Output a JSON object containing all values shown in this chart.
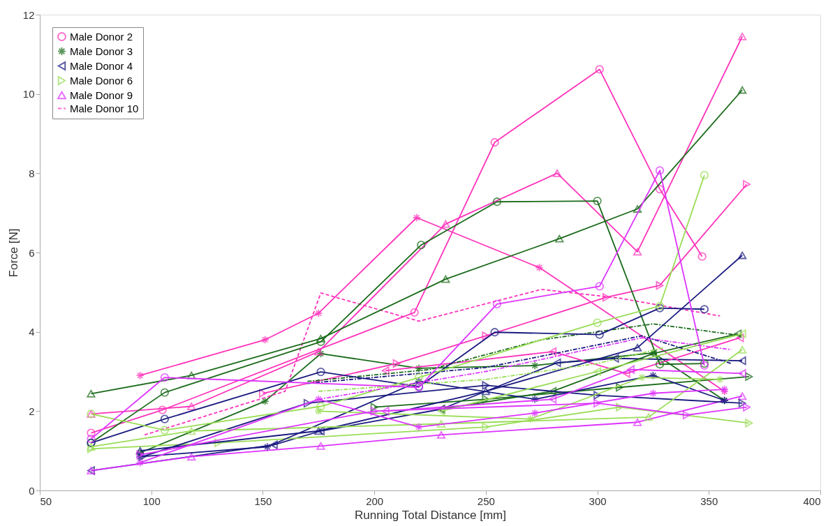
{
  "chart_data": {
    "type": "line",
    "xlabel": "Running Total Distance [mm]",
    "ylabel": "Force [N]",
    "xlim": [
      50,
      400
    ],
    "ylim": [
      0,
      12
    ],
    "xticks": [
      50,
      100,
      150,
      200,
      250,
      300,
      350,
      400
    ],
    "yticks": [
      0,
      2,
      4,
      6,
      8,
      10,
      12
    ],
    "grid": false,
    "legend": "top left",
    "line_style": "solid",
    "series": [
      {
        "name": "Male Donor 2",
        "color": "#ff33bb",
        "marker": "circle",
        "x": [
          73,
          105,
          218,
          254,
          301,
          328,
          347
        ],
        "values": [
          1.45,
          2.03,
          4.49,
          8.78,
          10.62,
          7.6,
          5.9
        ]
      },
      {
        "name": "Male Donor 3",
        "color": "#1a6b1a",
        "marker": "cross",
        "x": [
          95,
          151,
          176,
          220,
          272,
          325,
          357
        ],
        "values": [
          0.95,
          2.25,
          3.45,
          3.08,
          3.15,
          3.47,
          2.27
        ]
      },
      {
        "name": "Male Donor 4",
        "color": "#1a1a80",
        "marker": "triangle-left",
        "x": [
          73,
          155,
          176,
          230,
          282,
          308,
          365
        ],
        "values": [
          0.5,
          1.15,
          1.5,
          2.05,
          3.22,
          3.33,
          3.27
        ]
      },
      {
        "name": "Male Donor 6",
        "color": "#99dd55",
        "marker": "triangle-right",
        "x": [
          73,
          130,
          250,
          310,
          368
        ],
        "values": [
          1.05,
          1.2,
          1.6,
          2.1,
          1.7
        ]
      },
      {
        "name": "Male Donor 9",
        "color": "#dd33ff",
        "marker": "triangle",
        "x": [
          73,
          118,
          176,
          230,
          318,
          365
        ],
        "values": [
          0.5,
          0.85,
          1.12,
          1.4,
          1.72,
          2.38
        ]
      },
      {
        "name": "Male Donor 10",
        "color": "#ff33bb",
        "marker": "none",
        "line_style": "dashed",
        "x": [
          97,
          160,
          176,
          220,
          275,
          310,
          355
        ],
        "values": [
          1.4,
          2.5,
          4.98,
          4.27,
          5.07,
          4.85,
          4.4
        ]
      },
      {
        "color": "#ff33bb",
        "marker": "cross",
        "x": [
          95,
          151,
          175,
          219,
          274,
          357
        ],
        "values": [
          2.9,
          3.8,
          4.47,
          6.88,
          5.62,
          2.5
        ]
      },
      {
        "color": "#ff33bb",
        "marker": "triangle",
        "x": [
          73,
          118,
          175,
          232,
          282,
          318,
          365
        ],
        "values": [
          1.93,
          2.12,
          3.5,
          6.72,
          8.0,
          6.02,
          11.45
        ]
      },
      {
        "color": "#ff33bb",
        "marker": "triangle-right",
        "x": [
          150,
          210,
          250,
          304,
          328,
          367
        ],
        "values": [
          2.45,
          3.2,
          3.9,
          4.87,
          5.17,
          7.72
        ]
      },
      {
        "color": "#ff33bb",
        "marker": "triangle-left",
        "x": [
          205,
          280,
          313,
          364
        ],
        "values": [
          3.02,
          3.5,
          2.95,
          3.85
        ]
      },
      {
        "color": "#1a6b1a",
        "marker": "circle",
        "x": [
          73,
          106,
          176,
          221,
          255,
          300,
          328,
          348
        ],
        "values": [
          1.2,
          2.47,
          3.75,
          6.19,
          7.28,
          7.3,
          3.18,
          3.2
        ]
      },
      {
        "color": "#1a6b1a",
        "marker": "triangle",
        "x": [
          73,
          118,
          176,
          232,
          283,
          318,
          365
        ],
        "values": [
          2.44,
          2.9,
          3.83,
          5.33,
          6.35,
          7.1,
          10.1
        ]
      },
      {
        "color": "#1a6b1a",
        "marker": "triangle-left",
        "x": [
          230,
          280,
          325,
          363
        ],
        "values": [
          2.05,
          2.5,
          3.45,
          3.95
        ]
      },
      {
        "color": "#1a6b1a",
        "marker": "triangle-right",
        "x": [
          200,
          250,
          310,
          368
        ],
        "values": [
          2.1,
          2.3,
          2.6,
          2.87
        ]
      },
      {
        "color": "#1a6b1a",
        "marker": "none",
        "line_style": "dashdot",
        "x": [
          170,
          225,
          275,
          325,
          365
        ],
        "values": [
          2.75,
          3.05,
          3.8,
          4.2,
          3.9
        ]
      },
      {
        "color": "#1a1a80",
        "marker": "circle",
        "x": [
          73,
          106,
          176,
          220,
          254,
          301,
          328,
          348
        ],
        "values": [
          1.2,
          1.8,
          2.99,
          2.62,
          3.99,
          3.93,
          4.6,
          4.57
        ]
      },
      {
        "color": "#1a1a80",
        "marker": "triangle",
        "x": [
          95,
          175,
          250,
          318,
          365
        ],
        "values": [
          1.0,
          1.5,
          2.5,
          3.6,
          5.93
        ]
      },
      {
        "color": "#1a1a80",
        "marker": "cross",
        "x": [
          95,
          152,
          220,
          272,
          325,
          357
        ],
        "values": [
          0.85,
          1.1,
          2.75,
          2.3,
          2.9,
          2.27
        ]
      },
      {
        "color": "#1a1a80",
        "marker": "triangle-right",
        "x": [
          96,
          170,
          250,
          300,
          365
        ],
        "values": [
          0.85,
          2.2,
          2.65,
          2.4,
          2.2
        ]
      },
      {
        "color": "#1a1a80",
        "marker": "none",
        "line_style": "dashdot",
        "x": [
          170,
          250,
          320,
          360
        ],
        "values": [
          2.7,
          3.1,
          3.9,
          3.2
        ]
      },
      {
        "color": "#99dd55",
        "marker": "circle",
        "x": [
          73,
          106,
          176,
          220,
          300,
          328,
          348
        ],
        "values": [
          1.93,
          1.52,
          2.12,
          2.85,
          4.23,
          4.65,
          7.95
        ]
      },
      {
        "color": "#99dd55",
        "marker": "triangle",
        "x": [
          73,
          118,
          230,
          323,
          365
        ],
        "values": [
          1.1,
          1.5,
          1.68,
          1.85,
          3.55
        ]
      },
      {
        "color": "#99dd55",
        "marker": "triangle-left",
        "x": [
          230,
          300,
          365
        ],
        "values": [
          2.0,
          3.0,
          3.95
        ]
      },
      {
        "color": "#99dd55",
        "marker": "cross",
        "x": [
          175,
          270,
          320,
          355
        ],
        "values": [
          2.0,
          1.8,
          2.85,
          2.8
        ]
      },
      {
        "color": "#99dd55",
        "marker": "none",
        "line_style": "dashdot",
        "x": [
          175,
          250,
          300,
          330
        ],
        "values": [
          2.5,
          2.8,
          3.2,
          3.6
        ]
      },
      {
        "color": "#dd33ff",
        "marker": "circle",
        "x": [
          73,
          106,
          220,
          255,
          301,
          328,
          348
        ],
        "values": [
          1.3,
          2.85,
          2.6,
          4.7,
          5.15,
          8.07,
          3.15
        ]
      },
      {
        "color": "#dd33ff",
        "marker": "cross",
        "x": [
          95,
          175,
          220,
          272,
          325,
          357
        ],
        "values": [
          0.7,
          2.3,
          1.6,
          1.95,
          2.45,
          2.55
        ]
      },
      {
        "color": "#dd33ff",
        "marker": "triangle-right",
        "x": [
          95,
          200,
          300,
          340,
          367
        ],
        "values": [
          0.9,
          2.0,
          2.2,
          1.9,
          2.1
        ]
      },
      {
        "color": "#dd33ff",
        "marker": "triangle-left",
        "x": [
          205,
          280,
          315,
          365
        ],
        "values": [
          2.0,
          2.3,
          3.05,
          2.95
        ]
      },
      {
        "color": "#dd33ff",
        "marker": "none",
        "line_style": "dashdot",
        "x": [
          175,
          250,
          320,
          360
        ],
        "values": [
          2.3,
          3.0,
          3.85,
          3.55
        ]
      }
    ]
  }
}
